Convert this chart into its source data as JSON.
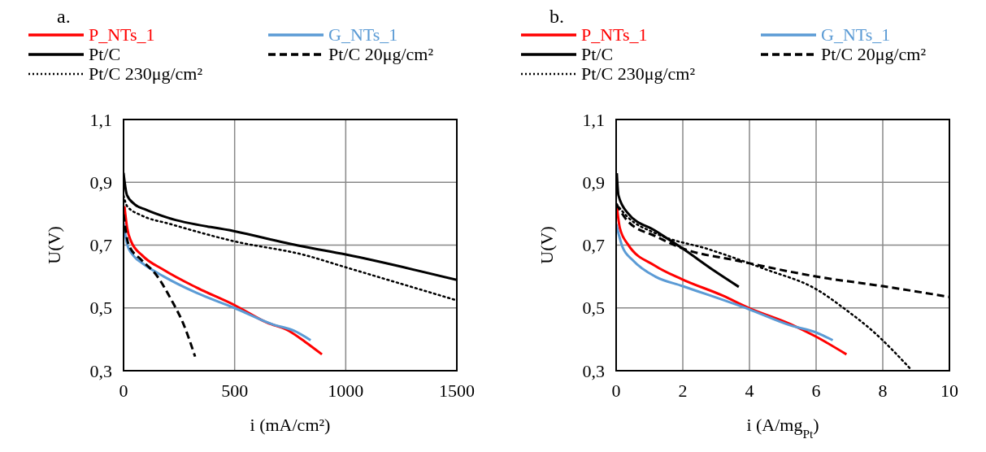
{
  "chart_data": [
    {
      "type": "line",
      "title": "a.",
      "xlabel": "i (mA/cm²)",
      "ylabel": "U(V)",
      "legend": "top",
      "grid": true,
      "xlim": [
        0,
        1500
      ],
      "xticks": [
        0,
        500,
        1000,
        1500
      ],
      "ylim": [
        0.3,
        1.1
      ],
      "yticks": [
        {
          "value": 0.3,
          "label": "0,3"
        },
        {
          "value": 0.5,
          "label": "0,5"
        },
        {
          "value": 0.7,
          "label": "0,7"
        },
        {
          "value": 0.9,
          "label": "0,9"
        },
        {
          "value": 1.1,
          "label": "1,1"
        }
      ],
      "series": [
        {
          "name": "P_NTs_1",
          "color": "#ff0000",
          "line_style": "solid",
          "x": [
            4,
            16,
            34,
            83,
            181,
            328,
            499,
            646,
            744,
            817,
            893
          ],
          "values": [
            0.824,
            0.755,
            0.712,
            0.668,
            0.621,
            0.565,
            0.509,
            0.453,
            0.427,
            0.392,
            0.352
          ]
        },
        {
          "name": "G_NTs_1",
          "color": "#5b9bd5",
          "line_style": "solid",
          "x": [
            0,
            16,
            47,
            83,
            181,
            328,
            499,
            670,
            768,
            842
          ],
          "values": [
            0.772,
            0.703,
            0.664,
            0.643,
            0.6,
            0.548,
            0.5,
            0.448,
            0.427,
            0.397
          ]
        },
        {
          "name": "Pt/C",
          "color": "#000000",
          "line_style": "solid",
          "x": [
            0,
            5,
            15,
            50,
            100,
            200,
            500,
            800,
            1000,
            1500
          ],
          "values": [
            0.93,
            0.9,
            0.86,
            0.83,
            0.813,
            0.787,
            0.744,
            0.697,
            0.67,
            0.589
          ]
        },
        {
          "name": "Pt/C 20μg/cm²",
          "color": "#000000",
          "line_style": "dashed",
          "x": [
            0,
            22,
            83,
            144,
            218,
            267,
            322
          ],
          "values": [
            0.798,
            0.703,
            0.651,
            0.608,
            0.522,
            0.453,
            0.345
          ]
        },
        {
          "name": "Pt/C 230μg/cm²",
          "color": "#000000",
          "line_style": "dotted",
          "x": [
            0,
            16,
            83,
            206,
            499,
            817,
            997,
            1500
          ],
          "values": [
            0.858,
            0.824,
            0.794,
            0.768,
            0.712,
            0.668,
            0.63,
            0.524
          ]
        }
      ]
    },
    {
      "type": "line",
      "title": "b.",
      "xlabel": "i (A/mg$_{Pt}$)",
      "ylabel": "U(V)",
      "legend": "top",
      "grid": true,
      "xlim": [
        0,
        10
      ],
      "xticks": [
        0,
        2,
        4,
        6,
        8,
        10
      ],
      "ylim": [
        0.3,
        1.1
      ],
      "yticks": [
        {
          "value": 0.3,
          "label": "0,3"
        },
        {
          "value": 0.5,
          "label": "0,5"
        },
        {
          "value": 0.7,
          "label": "0,7"
        },
        {
          "value": 0.9,
          "label": "0,9"
        },
        {
          "value": 1.1,
          "label": "1,1"
        }
      ],
      "series": [
        {
          "name": "P_NTs_1",
          "color": "#ff0000",
          "line_style": "solid",
          "x": [
            0.02,
            0.11,
            0.35,
            1.17,
            1.98,
            3.2,
            3.98,
            5.24,
            5.97,
            6.91
          ],
          "values": [
            0.824,
            0.755,
            0.703,
            0.634,
            0.591,
            0.539,
            0.5,
            0.448,
            0.41,
            0.352
          ]
        },
        {
          "name": "G_NTs_1",
          "color": "#5b9bd5",
          "line_style": "solid",
          "x": [
            0,
            0.19,
            0.51,
            1.17,
            1.98,
            3.98,
            5.24,
            5.97,
            6.5
          ],
          "values": [
            0.768,
            0.694,
            0.651,
            0.6,
            0.57,
            0.496,
            0.444,
            0.423,
            0.397
          ]
        },
        {
          "name": "Pt/C",
          "color": "#000000",
          "line_style": "solid",
          "x": [
            0.02,
            0.07,
            0.35,
            1.17,
            1.98,
            2.96,
            3.68
          ],
          "values": [
            0.929,
            0.858,
            0.802,
            0.746,
            0.69,
            0.617,
            0.567
          ]
        },
        {
          "name": "Pt/C 20μg/cm²",
          "color": "#000000",
          "line_style": "dashed",
          "x": [
            0,
            0.35,
            1.17,
            1.98,
            3.61,
            6.06,
            8.01,
            10
          ],
          "values": [
            0.832,
            0.776,
            0.729,
            0.69,
            0.651,
            0.599,
            0.569,
            0.535
          ]
        },
        {
          "name": "Pt/C 230μg/cm²",
          "color": "#000000",
          "line_style": "dotted",
          "x": [
            0,
            0.35,
            1.17,
            2.8,
            4.43,
            6.06,
            6.87,
            7.69,
            8.83
          ],
          "values": [
            0.832,
            0.789,
            0.738,
            0.686,
            0.625,
            0.556,
            0.496,
            0.427,
            0.306
          ]
        }
      ]
    }
  ]
}
